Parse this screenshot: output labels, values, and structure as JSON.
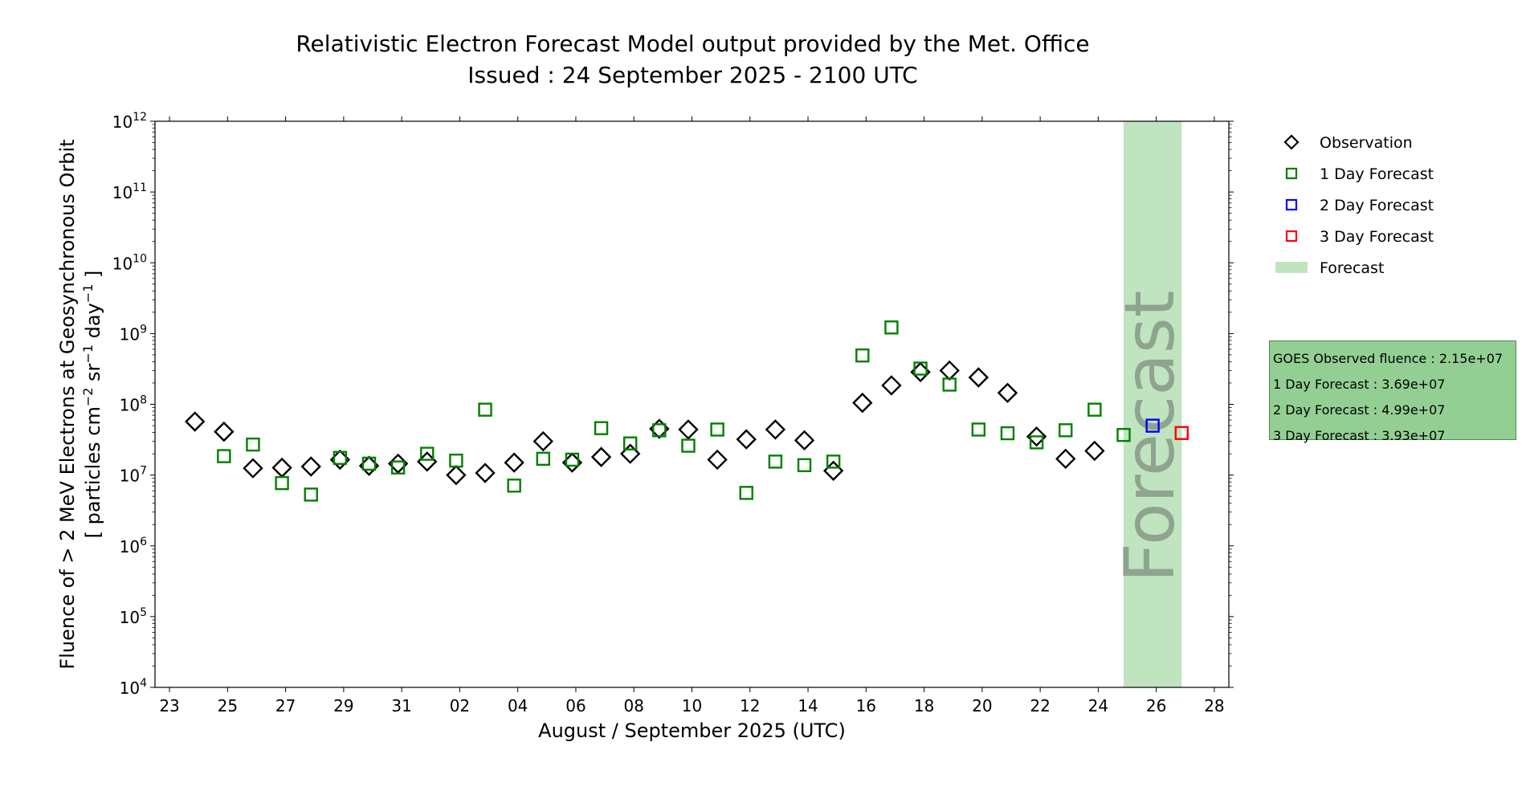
{
  "chart_data": {
    "type": "scatter",
    "title": "Relativistic Electron Forecast Model output provided by the Met. Office",
    "subtitle": "Issued : 24 September 2025 - 2100 UTC",
    "xlabel": "August / September 2025 (UTC)",
    "ylabel_line1": "Fluence of > 2 MeV Electrons at Geosynchronous Orbit",
    "ylabel_line2_pre": "[ particles cm",
    "ylabel_line2_exp1": "−2",
    "ylabel_line2_mid": " sr",
    "ylabel_line2_exp2": "−1",
    "ylabel_line2_mid2": " day",
    "ylabel_line2_exp3": "−1",
    "ylabel_line2_post": " ]",
    "y_scale": "log",
    "xlim": [
      "2025-08-22T12:00",
      "2025-09-28T12:00"
    ],
    "ylim": [
      10000,
      1000000000000
    ],
    "y_ticks": [
      {
        "base": "10",
        "exp": "4"
      },
      {
        "base": "10",
        "exp": "5"
      },
      {
        "base": "10",
        "exp": "6"
      },
      {
        "base": "10",
        "exp": "7"
      },
      {
        "base": "10",
        "exp": "8"
      },
      {
        "base": "10",
        "exp": "9"
      },
      {
        "base": "10",
        "exp": "10"
      },
      {
        "base": "10",
        "exp": "11"
      },
      {
        "base": "10",
        "exp": "12"
      }
    ],
    "x_ticks": [
      {
        "date": "2025-08-23",
        "label": "23"
      },
      {
        "date": "2025-08-25",
        "label": "25"
      },
      {
        "date": "2025-08-27",
        "label": "27"
      },
      {
        "date": "2025-08-29",
        "label": "29"
      },
      {
        "date": "2025-08-31",
        "label": "31"
      },
      {
        "date": "2025-09-02",
        "label": "02"
      },
      {
        "date": "2025-09-04",
        "label": "04"
      },
      {
        "date": "2025-09-06",
        "label": "06"
      },
      {
        "date": "2025-09-08",
        "label": "08"
      },
      {
        "date": "2025-09-10",
        "label": "10"
      },
      {
        "date": "2025-09-12",
        "label": "12"
      },
      {
        "date": "2025-09-14",
        "label": "14"
      },
      {
        "date": "2025-09-16",
        "label": "16"
      },
      {
        "date": "2025-09-18",
        "label": "18"
      },
      {
        "date": "2025-09-20",
        "label": "20"
      },
      {
        "date": "2025-09-22",
        "label": "22"
      },
      {
        "date": "2025-09-24",
        "label": "24"
      },
      {
        "date": "2025-09-26",
        "label": "26"
      },
      {
        "date": "2025-09-28",
        "label": "28"
      }
    ],
    "grid": false,
    "legend_placement": "outside right, top",
    "forecast_band": {
      "label": "Forecast",
      "start": "2025-09-24T21:00",
      "end": "2025-09-26T21:00",
      "color": "#c0e4c0",
      "text_color": "#8fa48f"
    },
    "series": [
      {
        "name": "Observation",
        "marker": "diamond",
        "color": "#000000",
        "points": [
          {
            "x": "2025-08-23T21:00",
            "y": 57000000
          },
          {
            "x": "2025-08-24T21:00",
            "y": 41000000
          },
          {
            "x": "2025-08-25T21:00",
            "y": 12500000
          },
          {
            "x": "2025-08-26T21:00",
            "y": 12700000
          },
          {
            "x": "2025-08-27T21:00",
            "y": 13200000
          },
          {
            "x": "2025-08-28T21:00",
            "y": 16500000
          },
          {
            "x": "2025-08-29T21:00",
            "y": 13500000
          },
          {
            "x": "2025-08-30T21:00",
            "y": 14500000
          },
          {
            "x": "2025-08-31T21:00",
            "y": 15500000
          },
          {
            "x": "2025-09-01T21:00",
            "y": 10000000
          },
          {
            "x": "2025-09-02T21:00",
            "y": 10700000
          },
          {
            "x": "2025-09-03T21:00",
            "y": 15000000
          },
          {
            "x": "2025-09-04T21:00",
            "y": 30000000
          },
          {
            "x": "2025-09-05T21:00",
            "y": 15000000
          },
          {
            "x": "2025-09-06T21:00",
            "y": 18000000
          },
          {
            "x": "2025-09-07T21:00",
            "y": 20000000
          },
          {
            "x": "2025-09-08T21:00",
            "y": 45000000
          },
          {
            "x": "2025-09-09T21:00",
            "y": 44000000
          },
          {
            "x": "2025-09-10T21:00",
            "y": 16500000
          },
          {
            "x": "2025-09-11T21:00",
            "y": 32000000
          },
          {
            "x": "2025-09-12T21:00",
            "y": 44000000
          },
          {
            "x": "2025-09-13T21:00",
            "y": 31000000
          },
          {
            "x": "2025-09-14T21:00",
            "y": 11500000
          },
          {
            "x": "2025-09-15T21:00",
            "y": 105000000
          },
          {
            "x": "2025-09-16T21:00",
            "y": 185000000
          },
          {
            "x": "2025-09-17T21:00",
            "y": 285000000
          },
          {
            "x": "2025-09-18T21:00",
            "y": 300000000
          },
          {
            "x": "2025-09-19T21:00",
            "y": 240000000
          },
          {
            "x": "2025-09-20T21:00",
            "y": 145000000
          },
          {
            "x": "2025-09-21T21:00",
            "y": 35000000
          },
          {
            "x": "2025-09-22T21:00",
            "y": 17000000
          },
          {
            "x": "2025-09-23T21:00",
            "y": 22000000
          }
        ]
      },
      {
        "name": "1 Day Forecast",
        "marker": "square",
        "color": "#008000",
        "points": [
          {
            "x": "2025-08-24T21:00",
            "y": 18500000
          },
          {
            "x": "2025-08-25T21:00",
            "y": 27000000
          },
          {
            "x": "2025-08-26T21:00",
            "y": 7700000
          },
          {
            "x": "2025-08-27T21:00",
            "y": 5300000
          },
          {
            "x": "2025-08-28T21:00",
            "y": 17500000
          },
          {
            "x": "2025-08-29T21:00",
            "y": 14500000
          },
          {
            "x": "2025-08-30T21:00",
            "y": 12800000
          },
          {
            "x": "2025-08-31T21:00",
            "y": 20000000
          },
          {
            "x": "2025-09-01T21:00",
            "y": 16000000
          },
          {
            "x": "2025-09-02T21:00",
            "y": 84000000
          },
          {
            "x": "2025-09-03T21:00",
            "y": 7100000
          },
          {
            "x": "2025-09-04T21:00",
            "y": 17000000
          },
          {
            "x": "2025-09-05T21:00",
            "y": 16500000
          },
          {
            "x": "2025-09-06T21:00",
            "y": 46000000
          },
          {
            "x": "2025-09-07T21:00",
            "y": 28000000
          },
          {
            "x": "2025-09-08T21:00",
            "y": 43000000
          },
          {
            "x": "2025-09-09T21:00",
            "y": 26000000
          },
          {
            "x": "2025-09-10T21:00",
            "y": 44000000
          },
          {
            "x": "2025-09-11T21:00",
            "y": 5600000
          },
          {
            "x": "2025-09-12T21:00",
            "y": 15500000
          },
          {
            "x": "2025-09-13T21:00",
            "y": 13800000
          },
          {
            "x": "2025-09-14T21:00",
            "y": 15500000
          },
          {
            "x": "2025-09-15T21:00",
            "y": 490000000
          },
          {
            "x": "2025-09-16T21:00",
            "y": 1220000000
          },
          {
            "x": "2025-09-17T21:00",
            "y": 320000000
          },
          {
            "x": "2025-09-18T21:00",
            "y": 190000000
          },
          {
            "x": "2025-09-19T21:00",
            "y": 44000000
          },
          {
            "x": "2025-09-20T21:00",
            "y": 39000000
          },
          {
            "x": "2025-09-21T21:00",
            "y": 29000000
          },
          {
            "x": "2025-09-22T21:00",
            "y": 43000000
          },
          {
            "x": "2025-09-23T21:00",
            "y": 84000000
          },
          {
            "x": "2025-09-24T21:00",
            "y": 36900000
          }
        ]
      },
      {
        "name": "2 Day Forecast",
        "marker": "square",
        "color": "#0000ff",
        "points": [
          {
            "x": "2025-09-25T21:00",
            "y": 49900000
          }
        ]
      },
      {
        "name": "3 Day Forecast",
        "marker": "square",
        "color": "#ff0000",
        "points": [
          {
            "x": "2025-09-26T21:00",
            "y": 39300000
          }
        ]
      }
    ],
    "legend": [
      {
        "label": "Observation",
        "marker": "diamond",
        "color": "#000000"
      },
      {
        "label": "1 Day Forecast",
        "marker": "square",
        "color": "#008000"
      },
      {
        "label": "2 Day Forecast",
        "marker": "square",
        "color": "#0000ff"
      },
      {
        "label": "3 Day Forecast",
        "marker": "square",
        "color": "#ff0000"
      },
      {
        "label": "Forecast",
        "marker": "band",
        "color": "#c0e4c0"
      }
    ],
    "info_box": {
      "color": "#93cf93",
      "lines": [
        "GOES Observed fluence : 2.15e+07",
        "1 Day Forecast : 3.69e+07",
        "2 Day Forecast : 4.99e+07",
        "3 Day Forecast : 3.93e+07"
      ]
    }
  }
}
